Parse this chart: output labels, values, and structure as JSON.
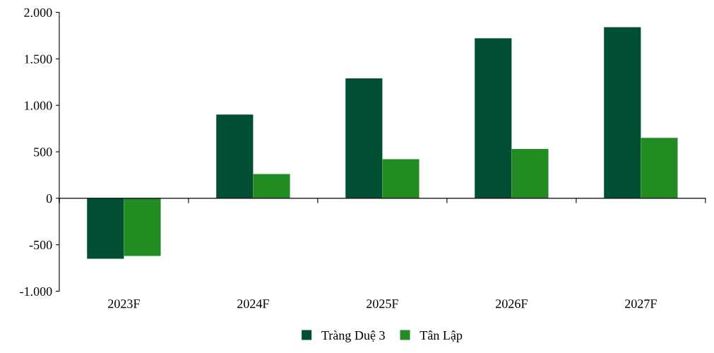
{
  "chart_data": {
    "type": "bar",
    "categories": [
      "2023F",
      "2024F",
      "2025F",
      "2026F",
      "2027F"
    ],
    "series": [
      {
        "name": "Tràng Duệ 3",
        "color": "#004f32",
        "values": [
          -650,
          900,
          1290,
          1720,
          1840
        ]
      },
      {
        "name": "Tân Lập",
        "color": "#228b22",
        "values": [
          -620,
          260,
          420,
          530,
          650
        ]
      }
    ],
    "ylim": [
      -1000,
      2000
    ],
    "yticks": [
      {
        "value": -1000,
        "label": "-1.000"
      },
      {
        "value": -500,
        "label": "-500"
      },
      {
        "value": 0,
        "label": "0"
      },
      {
        "value": 500,
        "label": "500"
      },
      {
        "value": 1000,
        "label": "1.000"
      },
      {
        "value": 1500,
        "label": "1.500"
      },
      {
        "value": 2000,
        "label": "2.000"
      }
    ],
    "legend": "bottom"
  }
}
